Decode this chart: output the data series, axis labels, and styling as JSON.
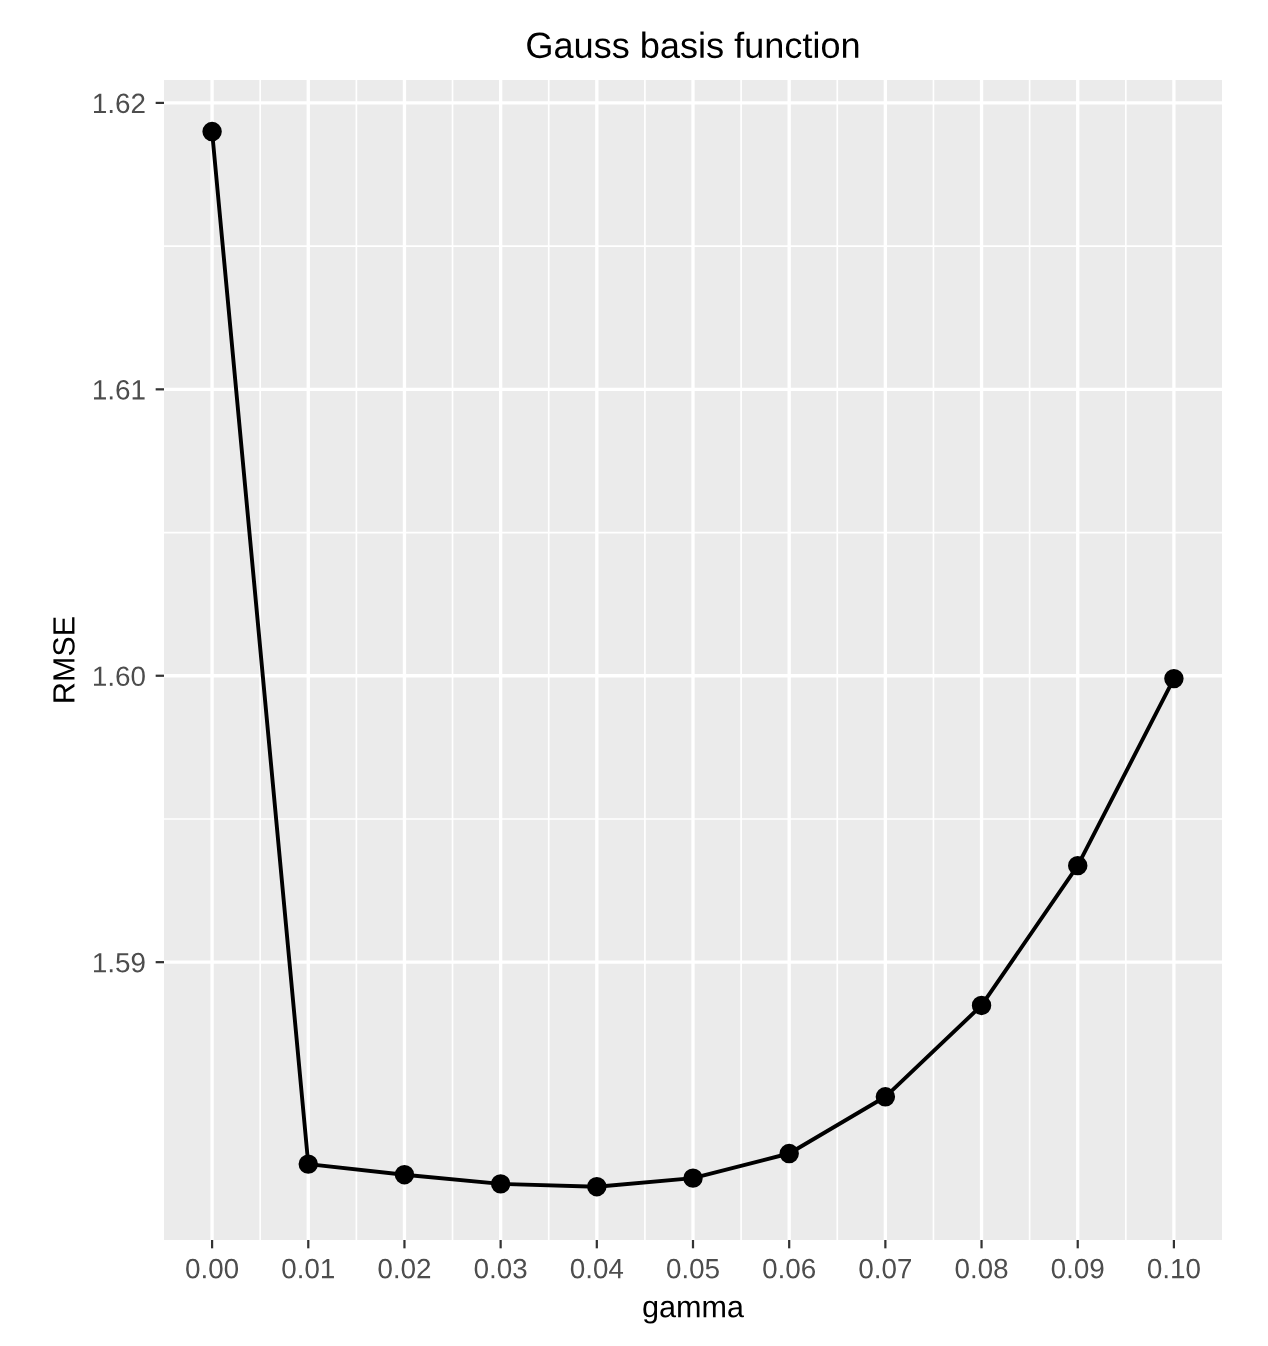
{
  "chart_data": {
    "type": "line",
    "title": "Gauss basis function",
    "xlabel": "gamma",
    "ylabel": "RMSE",
    "x": [
      0.0,
      0.01,
      0.02,
      0.03,
      0.04,
      0.05,
      0.06,
      0.07,
      0.08,
      0.09,
      0.1
    ],
    "series": [
      {
        "color": "#000000",
        "values": [
          1.619,
          1.58295,
          1.58258,
          1.58226,
          1.58216,
          1.58246,
          1.58332,
          1.5853,
          1.58849,
          1.59337,
          1.5999
        ]
      }
    ],
    "xlim": [
      -0.005,
      0.105
    ],
    "ylim": [
      1.5803,
      1.6208
    ],
    "xticks": [
      {
        "value": 0.0,
        "label": "0.00"
      },
      {
        "value": 0.01,
        "label": "0.01"
      },
      {
        "value": 0.02,
        "label": "0.02"
      },
      {
        "value": 0.03,
        "label": "0.03"
      },
      {
        "value": 0.04,
        "label": "0.04"
      },
      {
        "value": 0.05,
        "label": "0.05"
      },
      {
        "value": 0.06,
        "label": "0.06"
      },
      {
        "value": 0.07,
        "label": "0.07"
      },
      {
        "value": 0.08,
        "label": "0.08"
      },
      {
        "value": 0.09,
        "label": "0.09"
      },
      {
        "value": 0.1,
        "label": "0.10"
      }
    ],
    "yticks": [
      1.59,
      {
        "value": 1.6,
        "label": "1.60"
      },
      1.61,
      1.62
    ],
    "grid": true,
    "marker": "circle",
    "line_style": "solid"
  }
}
